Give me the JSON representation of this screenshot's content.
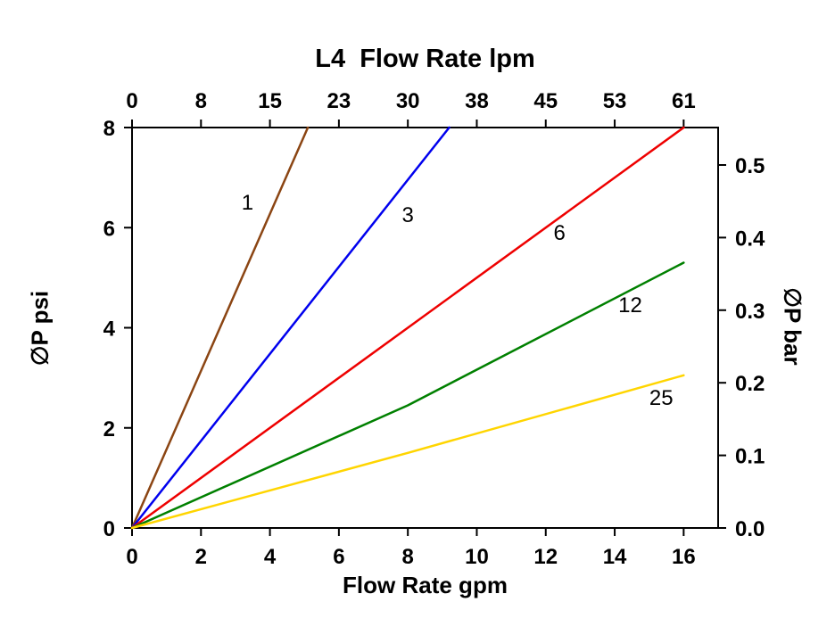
{
  "chart_data": {
    "type": "line",
    "title": "",
    "top_axis": {
      "title": "L4  Flow Rate lpm",
      "ticks": [
        "0",
        "8",
        "15",
        "23",
        "30",
        "38",
        "45",
        "53",
        "61"
      ]
    },
    "xlabel": "Flow Rate gpm",
    "x_ticks": [
      0,
      2,
      4,
      6,
      8,
      10,
      12,
      14,
      16
    ],
    "xlim": [
      0,
      17
    ],
    "ylabel_left": "∅P psi",
    "ylim_left": [
      0,
      8
    ],
    "y_ticks_left": [
      0,
      2,
      4,
      6,
      8
    ],
    "ylabel_right": "∅P bar",
    "y_ticks_right": [
      0.0,
      0.1,
      0.2,
      0.3,
      0.4,
      0.5
    ],
    "right_axis_bar_per_psi": 0.0689476,
    "grid": false,
    "legend": "inline-line-labels",
    "series": [
      {
        "name": "1",
        "color": "#8B4513",
        "points": [
          [
            0,
            0
          ],
          [
            5.1,
            8
          ]
        ],
        "label_pos": [
          3.35,
          6.5
        ]
      },
      {
        "name": "3",
        "color": "#0000EE",
        "points": [
          [
            0,
            0
          ],
          [
            9.2,
            8
          ]
        ],
        "label_pos": [
          8.0,
          6.25
        ]
      },
      {
        "name": "6",
        "color": "#EE0000",
        "points": [
          [
            0,
            0
          ],
          [
            16,
            8
          ]
        ],
        "label_pos": [
          12.4,
          5.9
        ]
      },
      {
        "name": "12",
        "color": "#008000",
        "points": [
          [
            0,
            0
          ],
          [
            8,
            2.45
          ],
          [
            16,
            5.3
          ]
        ],
        "label_pos": [
          14.45,
          4.45
        ]
      },
      {
        "name": "25",
        "color": "#FFD500",
        "points": [
          [
            0,
            0
          ],
          [
            8,
            1.5
          ],
          [
            16,
            3.05
          ]
        ],
        "label_pos": [
          15.35,
          2.6
        ]
      }
    ]
  }
}
